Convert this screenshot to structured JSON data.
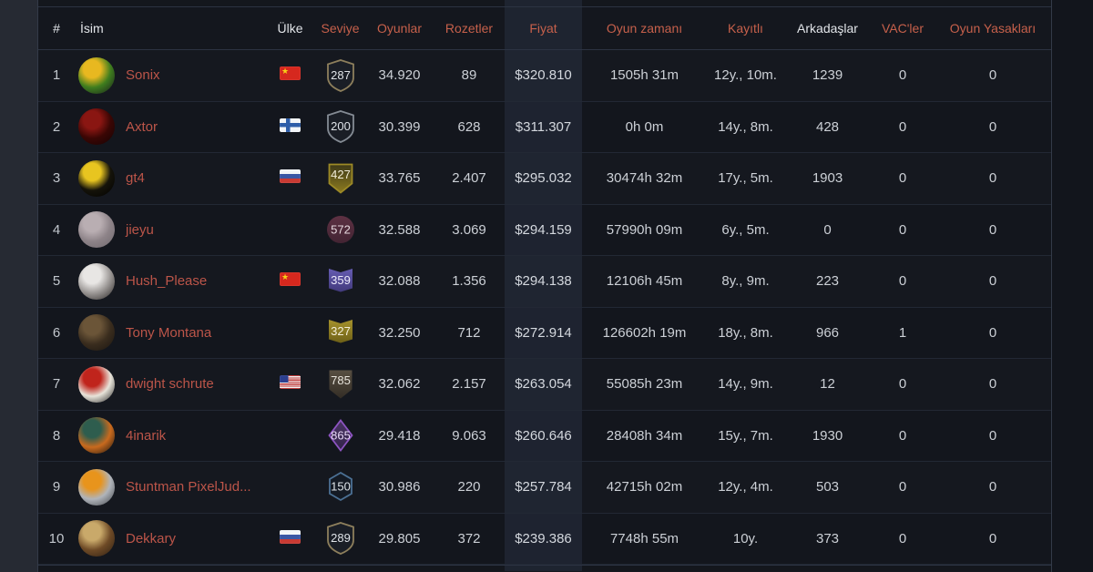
{
  "page": {
    "background_left": "#262a33",
    "background_right": "#12151c",
    "accent_color": "#c6604b",
    "name_color": "#bc5549"
  },
  "table": {
    "header": {
      "columns": [
        {
          "key": "rank",
          "label": "#",
          "accent": false
        },
        {
          "key": "name",
          "label": "İsim",
          "accent": false
        },
        {
          "key": "country",
          "label": "Ülke",
          "accent": false
        },
        {
          "key": "level",
          "label": "Seviye",
          "accent": true
        },
        {
          "key": "games",
          "label": "Oyunlar",
          "accent": true
        },
        {
          "key": "badges",
          "label": "Rozetler",
          "accent": true
        },
        {
          "key": "price",
          "label": "Fiyat",
          "accent": true
        },
        {
          "key": "playtime",
          "label": "Oyun zamanı",
          "accent": true
        },
        {
          "key": "registered",
          "label": "Kayıtlı",
          "accent": true
        },
        {
          "key": "friends",
          "label": "Arkadaşlar",
          "accent": false
        },
        {
          "key": "vac",
          "label": "VAC'ler",
          "accent": true
        },
        {
          "key": "game_bans",
          "label": "Oyun Yasakları",
          "accent": true
        }
      ]
    },
    "rows": [
      {
        "rank": "1",
        "name": "Sonix",
        "country": "cn",
        "games": "34.920",
        "badges": "89",
        "price": "$320.810",
        "playtime": "1505h 31m",
        "registered": "12y., 10m.",
        "friends": "1239",
        "vac": "0",
        "game_bans": "0",
        "avatar_colors": [
          "#e8b820",
          "#3f7d1e",
          "#14181c"
        ],
        "level_badge": {
          "value": "287",
          "shape": "shield",
          "stroke": "#8d7f5c",
          "fill1": "#1a1e26",
          "fill2": "#1a1e26",
          "text_color": "#dfe3e8"
        }
      },
      {
        "rank": "2",
        "name": "Axtor",
        "country": "fi",
        "games": "30.399",
        "badges": "628",
        "price": "$311.307",
        "playtime": "0h 0m",
        "registered": "14y., 8m.",
        "friends": "428",
        "vac": "0",
        "game_bans": "0",
        "avatar_colors": [
          "#8a1612",
          "#3a0604",
          "#120303"
        ],
        "level_badge": {
          "value": "200",
          "shape": "shield",
          "stroke": "#848b94",
          "fill1": "#1a1e26",
          "fill2": "#1a1e26",
          "text_color": "#dfe3e8"
        }
      },
      {
        "rank": "3",
        "name": "gt4",
        "country": "ru",
        "games": "33.765",
        "badges": "2.407",
        "price": "$295.032",
        "playtime": "30474h 32m",
        "registered": "17y., 5m.",
        "friends": "1903",
        "vac": "0",
        "game_bans": "0",
        "avatar_colors": [
          "#e8c520",
          "#15130a",
          "#000000"
        ],
        "level_badge": {
          "value": "427",
          "shape": "banner",
          "stroke": "#9d8a26",
          "fill1": "#3e3917",
          "fill2": "#8d7b20",
          "text_color": "#f2edd8"
        }
      },
      {
        "rank": "4",
        "name": "jieyu",
        "country": null,
        "games": "32.588",
        "badges": "3.069",
        "price": "$294.159",
        "playtime": "57990h 09m",
        "registered": "6y., 5m.",
        "friends": "0",
        "vac": "0",
        "game_bans": "0",
        "avatar_colors": [
          "#b9aeb2",
          "#8d8388",
          "#6e676d"
        ],
        "level_badge": {
          "value": "572",
          "shape": "circle",
          "stroke": "",
          "fill1": "#5d3143",
          "fill2": "#432433",
          "text_color": "#e6d8de"
        }
      },
      {
        "rank": "5",
        "name": "Hush_Please",
        "country": "cn",
        "games": "32.088",
        "badges": "1.356",
        "price": "$294.138",
        "playtime": "12106h 45m",
        "registered": "8y., 9m.",
        "friends": "223",
        "vac": "0",
        "game_bans": "0",
        "avatar_colors": [
          "#e8e6e4",
          "#9a9694",
          "#23201f"
        ],
        "level_badge": {
          "value": "359",
          "shape": "ribbon",
          "stroke": "",
          "fill1": "#655cb2",
          "fill2": "#423a7c",
          "text_color": "#eceafb"
        }
      },
      {
        "rank": "6",
        "name": "Tony Montana",
        "country": null,
        "games": "32.250",
        "badges": "712",
        "price": "$272.914",
        "playtime": "126602h 19m",
        "registered": "18y., 8m.",
        "friends": "966",
        "vac": "1",
        "game_bans": "0",
        "avatar_colors": [
          "#6b5538",
          "#3a2d1e",
          "#191410"
        ],
        "level_badge": {
          "value": "327",
          "shape": "ribbon",
          "stroke": "",
          "fill1": "#a5922c",
          "fill2": "#6e6017",
          "text_color": "#f4efda"
        }
      },
      {
        "rank": "7",
        "name": "dwight schrute",
        "country": "us",
        "games": "32.062",
        "badges": "2.157",
        "price": "$263.054",
        "playtime": "55085h 23m",
        "registered": "14y., 9m.",
        "friends": "12",
        "vac": "0",
        "game_bans": "0",
        "avatar_colors": [
          "#c0241c",
          "#e8e4da",
          "#1a1a1a"
        ],
        "level_badge": {
          "value": "785",
          "shape": "banner",
          "stroke": "",
          "fill1": "#584f42",
          "fill2": "#332d25",
          "text_color": "#e8e4dc"
        }
      },
      {
        "rank": "8",
        "name": "4inarik",
        "country": null,
        "games": "29.418",
        "badges": "9.063",
        "price": "$260.646",
        "playtime": "28408h 34m",
        "registered": "15y., 7m.",
        "friends": "1930",
        "vac": "0",
        "game_bans": "0",
        "avatar_colors": [
          "#2e5d4e",
          "#c96a1e",
          "#0d0f0d"
        ],
        "level_badge": {
          "value": "865",
          "shape": "diamond",
          "stroke": "#8d54c2",
          "fill1": "#4a3563",
          "fill2": "#32234a",
          "text_color": "#e9d9f8"
        }
      },
      {
        "rank": "9",
        "name": "Stuntman PixelJud...",
        "country": null,
        "games": "30.986",
        "badges": "220",
        "price": "$257.784",
        "playtime": "42715h 02m",
        "registered": "12y., 4m.",
        "friends": "503",
        "vac": "0",
        "game_bans": "0",
        "avatar_colors": [
          "#e8941c",
          "#b0b4ba",
          "#3a3d42"
        ],
        "level_badge": {
          "value": "150",
          "shape": "hexagon",
          "stroke": "#4b7094",
          "fill1": "#141a24",
          "fill2": "#141a24",
          "text_color": "#dfe5ea"
        }
      },
      {
        "rank": "10",
        "name": "Dekkary",
        "country": "ru",
        "games": "29.805",
        "badges": "372",
        "price": "$239.386",
        "playtime": "7748h 55m",
        "registered": "10y.",
        "friends": "373",
        "vac": "0",
        "game_bans": "0",
        "avatar_colors": [
          "#c9a96a",
          "#6e4a26",
          "#2a1d12"
        ],
        "level_badge": {
          "value": "289",
          "shape": "shield",
          "stroke": "#8d7f5c",
          "fill1": "#1a1e26",
          "fill2": "#1a1e26",
          "text_color": "#dfe3e8"
        }
      }
    ]
  }
}
